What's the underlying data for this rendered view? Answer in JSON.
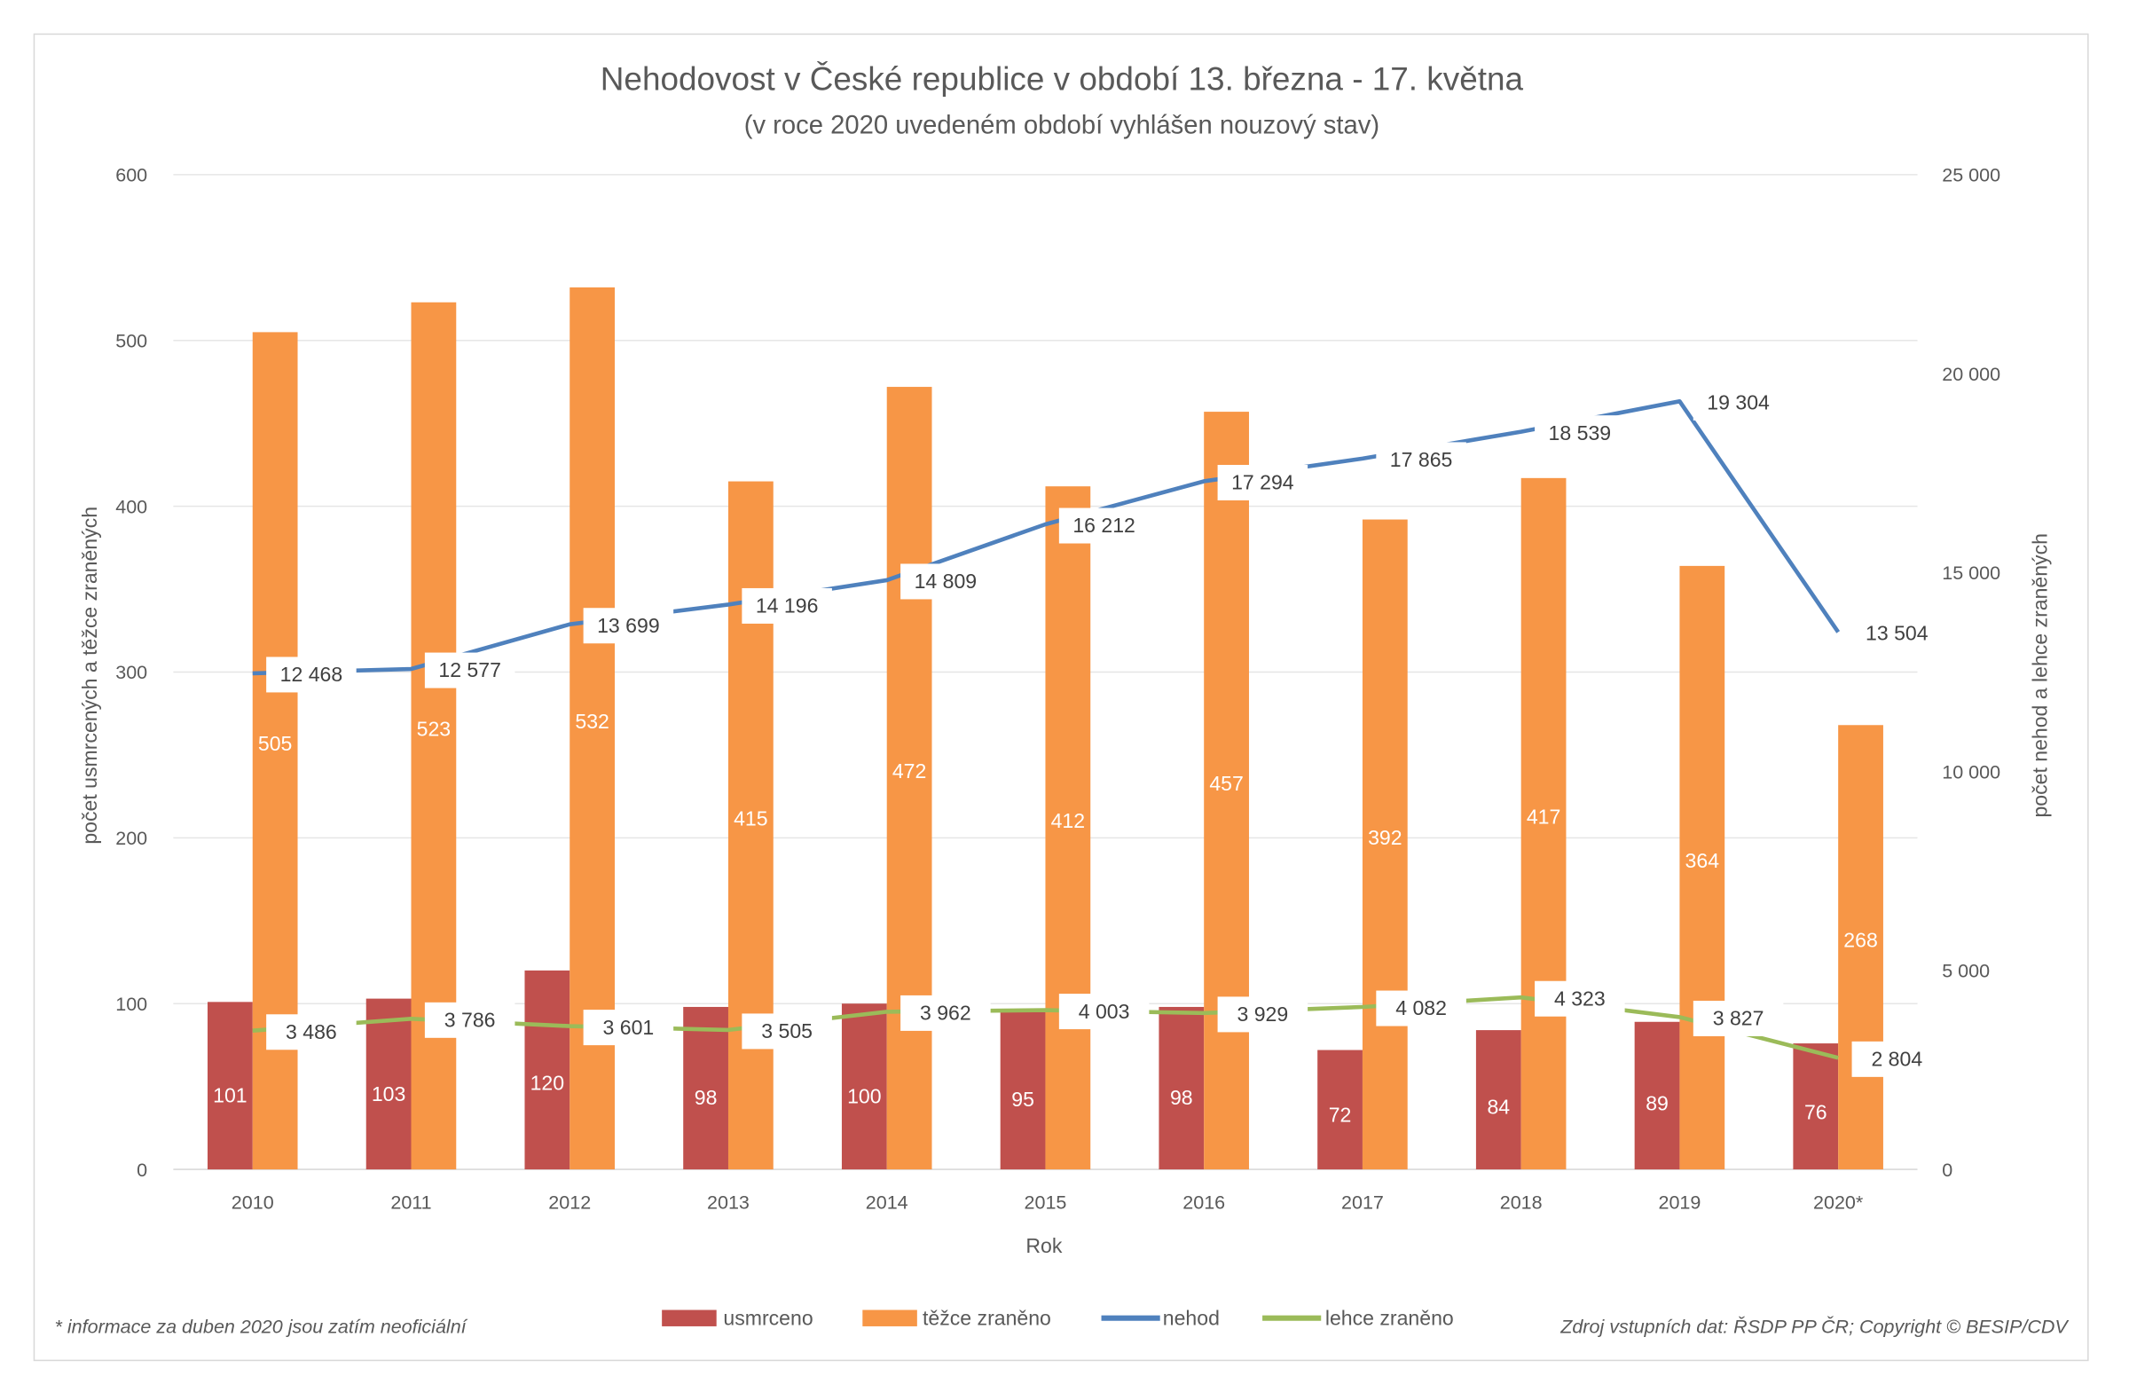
{
  "chart_data": {
    "type": "bar+line",
    "title": "Nehodovost v České republice v období 13. března - 17. května",
    "subtitle": "(v roce 2020 uvedeném období vyhlášen nouzový stav)",
    "xlabel": "Rok",
    "ylabel_left": "počet usmrcených a těžce zraněných",
    "ylabel_right": "počet nehod a lehce zraněných",
    "categories": [
      "2010",
      "2011",
      "2012",
      "2013",
      "2014",
      "2015",
      "2016",
      "2017",
      "2018",
      "2019",
      "2020*"
    ],
    "ylim_left": [
      0,
      600
    ],
    "yticks_left": [
      "0",
      "100",
      "200",
      "300",
      "400",
      "500",
      "600"
    ],
    "ylim_right": [
      0,
      25000
    ],
    "yticks_right": [
      "0",
      "5 000",
      "10 000",
      "15 000",
      "20 000",
      "25 000"
    ],
    "grid": true,
    "legend_position": "bottom",
    "series": [
      {
        "name": "usmrceno",
        "kind": "bar",
        "axis": "left",
        "color": "#C0504D",
        "values": [
          101,
          103,
          120,
          98,
          100,
          95,
          98,
          72,
          84,
          89,
          76
        ],
        "labels": [
          "101",
          "103",
          "120",
          "98",
          "100",
          "95",
          "98",
          "72",
          "84",
          "89",
          "76"
        ]
      },
      {
        "name": "těžce zraněno",
        "kind": "bar",
        "axis": "left",
        "color": "#F79646",
        "values": [
          505,
          523,
          532,
          415,
          472,
          412,
          457,
          392,
          417,
          364,
          268
        ],
        "labels": [
          "505",
          "523",
          "532",
          "415",
          "472",
          "412",
          "457",
          "392",
          "417",
          "364",
          "268"
        ]
      },
      {
        "name": "nehod",
        "kind": "line",
        "axis": "right",
        "color": "#4F81BD",
        "values": [
          12468,
          12577,
          13699,
          14196,
          14809,
          16212,
          17294,
          17865,
          18539,
          19304,
          13504
        ],
        "labels": [
          "12 468",
          "12 577",
          "13 699",
          "14 196",
          "14 809",
          "16 212",
          "17 294",
          "17 865",
          "18 539",
          "19 304",
          "13 504"
        ]
      },
      {
        "name": "lehce zraněno",
        "kind": "line",
        "axis": "right",
        "color": "#9BBB59",
        "values": [
          3486,
          3786,
          3601,
          3505,
          3962,
          4003,
          3929,
          4082,
          4323,
          3827,
          2804
        ],
        "labels": [
          "3 486",
          "3 786",
          "3 601",
          "3 505",
          "3 962",
          "4 003",
          "3 929",
          "4 082",
          "4 323",
          "3 827",
          "2 804"
        ]
      }
    ],
    "footnote": "* informace za duben 2020 jsou zatím neoficiální",
    "source": "Zdroj vstupních dat: ŘSDP PP ČR; Copyright © BESIP/CDV"
  }
}
